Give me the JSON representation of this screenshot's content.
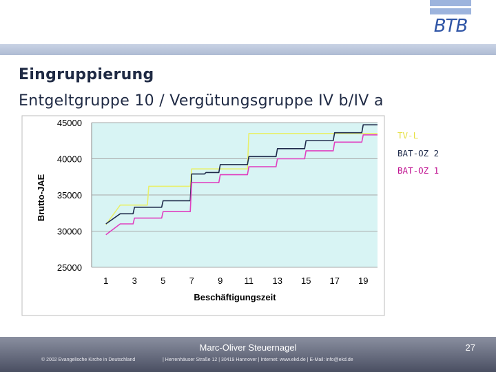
{
  "header": {
    "logo_text": "BTB",
    "title": "Eingruppierung",
    "subtitle": "Entgeltgruppe 10 / Vergütungsgruppe IV b/IV a"
  },
  "colors": {
    "tv_l": "#e8f06a",
    "bat_oz_2": "#1e2a4a",
    "bat_oz_1": "#e040c0",
    "plot_bg": "#d8f4f4",
    "grid": "#a8a8a8"
  },
  "chart_data": {
    "type": "line",
    "xlabel": "Beschäftigungszeit",
    "ylabel": "Brutto-JAE",
    "xlim": [
      0,
      20
    ],
    "ylim": [
      25000,
      45000
    ],
    "xticks": [
      1,
      3,
      5,
      7,
      9,
      11,
      13,
      15,
      17,
      19
    ],
    "yticks": [
      25000,
      30000,
      35000,
      40000,
      45000
    ],
    "grid": true,
    "legend_position": "right",
    "series": [
      {
        "name": "TV-L",
        "color": "#e8f06a",
        "x": [
          1,
          2,
          3,
          4,
          5,
          6,
          7,
          8,
          9,
          10,
          11,
          12,
          13,
          14,
          15,
          16,
          17,
          18,
          19,
          20
        ],
        "values": [
          30900,
          33600,
          33600,
          36200,
          36200,
          36200,
          38600,
          38600,
          38600,
          38600,
          43500,
          43500,
          43500,
          43500,
          43500,
          43500,
          43500,
          43500,
          43500,
          43500
        ]
      },
      {
        "name": "BAT-OZ 2",
        "color": "#1e2a4a",
        "x": [
          1,
          2,
          3,
          4,
          5,
          6,
          7,
          8,
          9,
          10,
          11,
          12,
          13,
          14,
          15,
          16,
          17,
          18,
          19,
          20
        ],
        "values": [
          31000,
          32400,
          33300,
          33300,
          34200,
          34200,
          37900,
          38100,
          39200,
          39200,
          40300,
          40300,
          41400,
          41400,
          42500,
          42500,
          43600,
          43600,
          44700,
          44700
        ]
      },
      {
        "name": "BAT-OZ 1",
        "color": "#e040c0",
        "x": [
          1,
          2,
          3,
          4,
          5,
          6,
          7,
          8,
          9,
          10,
          11,
          12,
          13,
          14,
          15,
          16,
          17,
          18,
          19,
          20
        ],
        "values": [
          29500,
          31000,
          31800,
          31800,
          32700,
          32700,
          36700,
          36700,
          37800,
          37800,
          38900,
          38900,
          40000,
          40000,
          41100,
          41100,
          42300,
          42300,
          43300,
          43300
        ]
      }
    ]
  },
  "footer": {
    "presenter": "Marc-Oliver Steuernagel",
    "page_number": "27",
    "copyright": "© 2002 Evangelische Kirche in Deutschland",
    "contact": "| Herrenhäuser Straße 12 | 30419 Hannover | Internet: www.ekd.de | E-Mail: info@ekd.de"
  }
}
